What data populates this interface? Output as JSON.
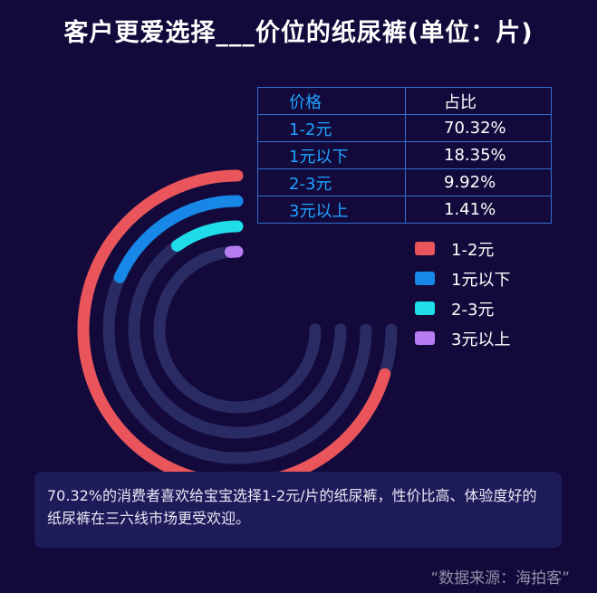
{
  "title": "客户更爱选择___价位的纸尿裤(单位：片)",
  "table": {
    "headers": [
      "价格",
      "占比"
    ],
    "rows": [
      [
        "1-2元",
        "70.32%"
      ],
      [
        "1元以下",
        "18.35%"
      ],
      [
        "2-3元",
        "9.92%"
      ],
      [
        "3元以上",
        "1.41%"
      ]
    ]
  },
  "chart_data": {
    "type": "radial-bar",
    "title": "客户更爱选择___价位的纸尿裤(单位：片)",
    "unit": "%",
    "series": [
      {
        "name": "1-2元",
        "value": 70.32,
        "color": "#e9555a"
      },
      {
        "name": "1元以下",
        "value": 18.35,
        "color": "#1787e8"
      },
      {
        "name": "2-3元",
        "value": 9.92,
        "color": "#1fdde8"
      },
      {
        "name": "3元以上",
        "value": 1.41,
        "color": "#b67cf2"
      }
    ],
    "track_color": "#2a2b63",
    "legend_position": "right"
  },
  "summary": "70.32%的消费者喜欢给宝宝选择1-2元/片的纸尿裤，性价比高、体验度好的纸尿裤在三六线市场更受欢迎。",
  "source": "“数据来源：海拍客”"
}
